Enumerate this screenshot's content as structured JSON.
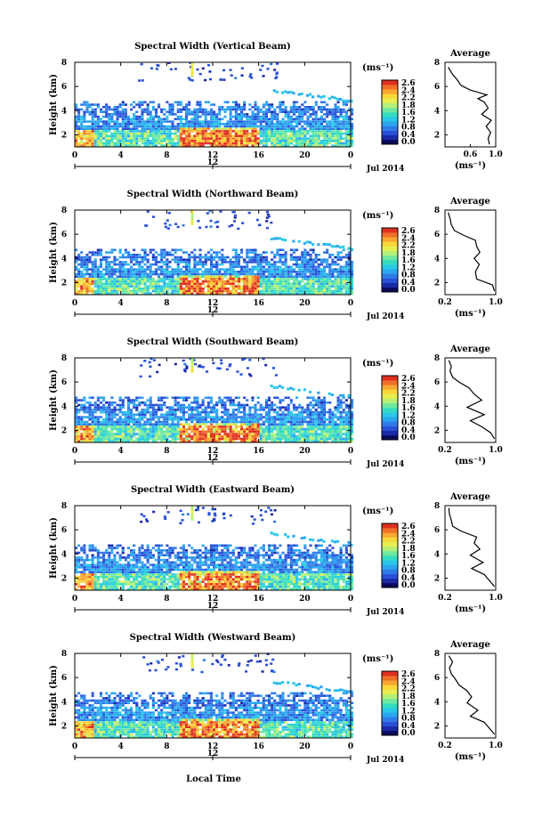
{
  "figure": {
    "xlabel": "Local Time",
    "date_label": "Jul 2014",
    "noon_label": "12",
    "avg_title": "Average"
  },
  "colorbar": {
    "title": "(ms⁻¹)",
    "ticks": [
      "2.6",
      "2.4",
      "2.2",
      "1.8",
      "1.6",
      "1.2",
      "0.8",
      "0.4",
      "0.0"
    ],
    "colors": [
      "#0a0a5a",
      "#1a2aa8",
      "#2a50d8",
      "#2f7ce8",
      "#2aa6f0",
      "#28c8e8",
      "#34dcc0",
      "#6ee8a0",
      "#b4f078",
      "#e8ee50",
      "#f8d838",
      "#f8a830",
      "#f07028",
      "#e03020"
    ]
  },
  "chart_data": [
    {
      "type": "heatmap",
      "title": "Spectral Width (Vertical Beam)",
      "ylabel": "Height (km)",
      "xlim": [
        0,
        24
      ],
      "ylim": [
        1,
        8
      ],
      "xticks": [
        "0",
        "4",
        "8",
        "12",
        "16",
        "20",
        "0"
      ],
      "yticks": [
        "2",
        "4",
        "6",
        "8"
      ],
      "colorbar_range": [
        0.0,
        2.6
      ],
      "average": {
        "xlabel": "(ms⁻¹)",
        "xlim": [
          0.2,
          1.0
        ],
        "xticks": [
          "0.6",
          "1.0"
        ],
        "ylim": [
          1,
          8
        ],
        "yticks": [
          "2",
          "4",
          "6",
          "8"
        ],
        "x": [
          0.9,
          0.88,
          0.92,
          0.85,
          0.93,
          0.78,
          0.88,
          0.82,
          0.72,
          0.86,
          0.6,
          0.45,
          0.4,
          0.32,
          0.25
        ],
        "y": [
          1.2,
          1.7,
          2.2,
          2.7,
          3.2,
          3.7,
          4.2,
          4.7,
          5.0,
          5.3,
          5.7,
          6.1,
          6.5,
          7.0,
          7.6
        ]
      }
    },
    {
      "type": "heatmap",
      "title": "Spectral Width (Northward Beam)",
      "ylabel": "Height (km)",
      "xlim": [
        0,
        24
      ],
      "ylim": [
        1,
        8
      ],
      "xticks": [
        "0",
        "4",
        "8",
        "12",
        "16",
        "20",
        "0"
      ],
      "yticks": [
        "2",
        "4",
        "6",
        "8"
      ],
      "colorbar_range": [
        0.0,
        2.6
      ],
      "average": {
        "xlabel": "(ms⁻¹)",
        "xlim": [
          0.2,
          1.0
        ],
        "xticks": [
          "0.2",
          "1.0"
        ],
        "ylim": [
          1,
          8
        ],
        "yticks": [
          "2",
          "4",
          "6",
          "8"
        ],
        "x": [
          0.98,
          0.95,
          0.7,
          0.68,
          0.74,
          0.66,
          0.75,
          0.7,
          0.68,
          0.5,
          0.35,
          0.3,
          0.28,
          0.25
        ],
        "y": [
          1.3,
          1.8,
          2.3,
          2.9,
          3.5,
          4.0,
          4.5,
          5.0,
          5.5,
          5.9,
          6.3,
          6.8,
          7.3,
          7.8
        ]
      }
    },
    {
      "type": "heatmap",
      "title": "Spectral Width (Southward Beam)",
      "ylabel": "Height (km)",
      "xlim": [
        0,
        24
      ],
      "ylim": [
        1,
        8
      ],
      "xticks": [
        "0",
        "4",
        "8",
        "12",
        "16",
        "20",
        "0"
      ],
      "yticks": [
        "2",
        "4",
        "6",
        "8"
      ],
      "colorbar_range": [
        0.0,
        2.6
      ],
      "average": {
        "xlabel": "(ms⁻¹)",
        "xlim": [
          0.2,
          1.0
        ],
        "xticks": [
          "0.2",
          "1.0"
        ],
        "ylim": [
          1,
          8
        ],
        "yticks": [
          "2",
          "4",
          "6",
          "8"
        ],
        "x": [
          0.98,
          0.92,
          0.78,
          0.6,
          0.82,
          0.55,
          0.78,
          0.66,
          0.58,
          0.42,
          0.32,
          0.28,
          0.3,
          0.26
        ],
        "y": [
          1.3,
          1.8,
          2.3,
          2.8,
          3.3,
          3.9,
          4.5,
          5.0,
          5.5,
          6.0,
          6.4,
          6.9,
          7.3,
          7.8
        ]
      }
    },
    {
      "type": "heatmap",
      "title": "Spectral Width (Eastward Beam)",
      "ylabel": "Height (km)",
      "xlim": [
        0,
        24
      ],
      "ylim": [
        1,
        8
      ],
      "xticks": [
        "0",
        "4",
        "8",
        "12",
        "16",
        "20",
        "0"
      ],
      "yticks": [
        "2",
        "4",
        "6",
        "8"
      ],
      "colorbar_range": [
        0.0,
        2.6
      ],
      "average": {
        "xlabel": "(ms⁻¹)",
        "xlim": [
          0.2,
          1.0
        ],
        "xticks": [
          "0.2",
          "1.0"
        ],
        "ylim": [
          1,
          8
        ],
        "yticks": [
          "2",
          "4",
          "6",
          "8"
        ],
        "x": [
          0.98,
          0.9,
          0.82,
          0.62,
          0.8,
          0.6,
          0.75,
          0.66,
          0.7,
          0.45,
          0.32,
          0.3,
          0.27,
          0.26
        ],
        "y": [
          1.3,
          1.8,
          2.3,
          2.8,
          3.3,
          3.9,
          4.4,
          4.9,
          5.4,
          5.9,
          6.3,
          6.8,
          7.3,
          7.8
        ]
      }
    },
    {
      "type": "heatmap",
      "title": "Spectral Width (Westward Beam)",
      "ylabel": "Height (km)",
      "xlim": [
        0,
        24
      ],
      "ylim": [
        1,
        8
      ],
      "xticks": [
        "0",
        "4",
        "8",
        "12",
        "16",
        "20",
        "0"
      ],
      "yticks": [
        "2",
        "4",
        "6",
        "8"
      ],
      "colorbar_range": [
        0.0,
        2.6
      ],
      "average": {
        "xlabel": "(ms⁻¹)",
        "xlim": [
          0.2,
          1.0
        ],
        "xticks": [
          "0.2",
          "1.0"
        ],
        "ylim": [
          1,
          8
        ],
        "yticks": [
          "2",
          "4",
          "6",
          "8"
        ],
        "x": [
          0.98,
          0.9,
          0.82,
          0.6,
          0.72,
          0.55,
          0.62,
          0.55,
          0.42,
          0.36,
          0.3,
          0.27,
          0.32,
          0.26
        ],
        "y": [
          1.3,
          1.8,
          2.3,
          2.8,
          3.3,
          3.9,
          4.4,
          4.9,
          5.4,
          5.9,
          6.3,
          6.8,
          7.3,
          7.8
        ]
      }
    }
  ]
}
